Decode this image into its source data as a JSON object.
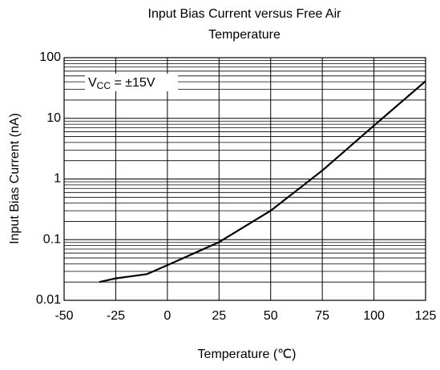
{
  "chart_data": {
    "type": "line",
    "title": [
      "Input Bias Current versus Free Air",
      "Temperature"
    ],
    "x_label": "Temperature (℃)",
    "y_label": "Input Bias Current (nA)",
    "annotation": {
      "main": "V",
      "sub": "CC",
      "rest": " = ±15V"
    },
    "x": [
      -33,
      -25,
      -10,
      0,
      25,
      50,
      75,
      100,
      125
    ],
    "series": [
      {
        "name": "Input Bias Current",
        "color": "#000000",
        "values": [
          0.02,
          0.023,
          0.027,
          0.038,
          0.091,
          0.3,
          1.38,
          7.6,
          41
        ]
      }
    ],
    "xlim": [
      -50,
      125
    ],
    "xticks": [
      -50,
      -25,
      0,
      25,
      50,
      75,
      100,
      125
    ],
    "ylim": [
      0.01,
      100
    ],
    "yticks": [
      0.01,
      0.1,
      1,
      10,
      100
    ],
    "log_y": true,
    "grid": true,
    "minor_grid": true
  }
}
